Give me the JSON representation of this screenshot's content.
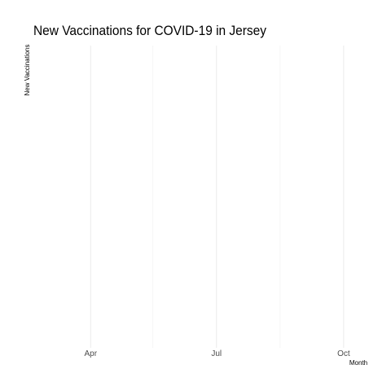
{
  "chart_data": {
    "type": "line",
    "title": "New Vaccinations for COVID-19 in Jersey",
    "xlabel": "Month",
    "ylabel": "New Vaccinations",
    "x_axis": {
      "type": "date",
      "range": [
        "2021-02-18",
        "2021-10-27"
      ],
      "ticks": [
        {
          "value": "2021-04-01",
          "label": "Apr"
        },
        {
          "value": "2021-07-01",
          "label": "Jul"
        },
        {
          "value": "2021-10-01",
          "label": "Oct"
        }
      ],
      "minor_gridlines": [
        "2021-05-16",
        "2021-08-16"
      ]
    },
    "y_axis": {
      "ticks": []
    },
    "series": [],
    "grid": true,
    "legend": "none"
  }
}
